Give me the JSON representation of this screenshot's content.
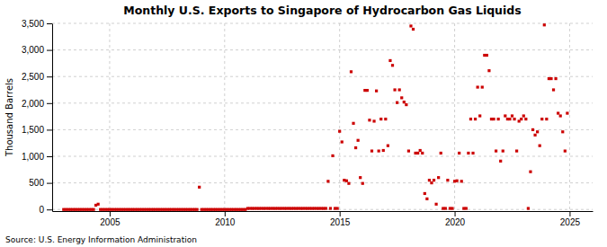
{
  "chart_data": {
    "type": "scatter",
    "title": "Monthly U.S. Exports to Singapore of Hydrocarbon Gas Liquids",
    "ylabel": "Thousand Barrels",
    "source": "Source: U.S. Energy Information Administration",
    "color": "#CC0000",
    "marker": "square",
    "grid": true,
    "xlim": [
      2002.5,
      2026
    ],
    "ylim": [
      -30,
      3500
    ],
    "xticks": [
      2005,
      2010,
      2015,
      2020,
      2025
    ],
    "yticks": [
      0,
      500,
      {
        "value": 1000,
        "label": "1,000"
      },
      {
        "value": 1500,
        "label": "1,500"
      },
      {
        "value": 2000,
        "label": "2,000"
      },
      {
        "value": 2500,
        "label": "2,500"
      },
      {
        "value": 3000,
        "label": "3,000"
      },
      {
        "value": 3500,
        "label": "3,500"
      }
    ],
    "x": [
      2003.0,
      2003.1,
      2003.2,
      2003.3,
      2003.4,
      2003.5,
      2003.6,
      2003.7,
      2003.8,
      2003.9,
      2004.0,
      2004.1,
      2004.2,
      2004.3,
      2004.4,
      2004.5,
      2004.6,
      2004.7,
      2004.8,
      2004.9,
      2005.0,
      2005.1,
      2005.2,
      2005.3,
      2005.4,
      2005.5,
      2005.6,
      2005.7,
      2005.8,
      2005.9,
      2006.0,
      2006.1,
      2006.2,
      2006.3,
      2006.4,
      2006.5,
      2006.6,
      2006.7,
      2006.8,
      2006.9,
      2007.0,
      2007.1,
      2007.2,
      2007.3,
      2007.4,
      2007.5,
      2007.6,
      2007.7,
      2007.8,
      2007.9,
      2008.0,
      2008.1,
      2008.2,
      2008.3,
      2008.4,
      2008.5,
      2008.6,
      2008.7,
      2008.8,
      2008.9,
      2009.0,
      2009.1,
      2009.2,
      2009.3,
      2009.4,
      2009.5,
      2009.6,
      2009.7,
      2009.8,
      2009.9,
      2010.0,
      2010.1,
      2010.2,
      2010.3,
      2010.4,
      2010.5,
      2010.6,
      2010.7,
      2010.8,
      2010.9,
      2011.0,
      2011.1,
      2011.2,
      2011.3,
      2011.4,
      2011.5,
      2011.6,
      2011.7,
      2011.8,
      2011.9,
      2012.0,
      2012.1,
      2012.2,
      2012.3,
      2012.4,
      2012.5,
      2012.6,
      2012.7,
      2012.8,
      2012.9,
      2013.0,
      2013.1,
      2013.2,
      2013.3,
      2013.4,
      2013.5,
      2013.6,
      2013.7,
      2013.8,
      2013.9,
      2014.0,
      2014.1,
      2014.2,
      2014.3,
      2014.4,
      2014.5,
      2014.6,
      2014.7,
      2014.8,
      2014.9,
      2015.0,
      2015.1,
      2015.2,
      2015.3,
      2015.4,
      2015.5,
      2015.6,
      2015.7,
      2015.8,
      2015.9,
      2016.0,
      2016.1,
      2016.2,
      2016.3,
      2016.4,
      2016.5,
      2016.6,
      2016.7,
      2016.8,
      2016.9,
      2017.0,
      2017.1,
      2017.2,
      2017.3,
      2017.4,
      2017.5,
      2017.6,
      2017.7,
      2017.8,
      2017.9,
      2018.0,
      2018.1,
      2018.2,
      2018.3,
      2018.4,
      2018.5,
      2018.6,
      2018.7,
      2018.8,
      2018.9,
      2019.0,
      2019.1,
      2019.2,
      2019.3,
      2019.4,
      2019.5,
      2019.6,
      2019.7,
      2019.8,
      2019.9,
      2020.0,
      2020.1,
      2020.2,
      2020.3,
      2020.4,
      2020.5,
      2020.6,
      2020.7,
      2020.8,
      2020.9,
      2021.0,
      2021.1,
      2021.2,
      2021.3,
      2021.4,
      2021.5,
      2021.6,
      2021.7,
      2021.8,
      2021.9,
      2022.0,
      2022.1,
      2022.2,
      2022.3,
      2022.4,
      2022.5,
      2022.6,
      2022.7,
      2022.8,
      2022.9,
      2023.0,
      2023.1,
      2023.2,
      2023.3,
      2023.4,
      2023.5,
      2023.6,
      2023.7,
      2023.8,
      2023.9,
      2024.0,
      2024.1,
      2024.2,
      2024.3,
      2024.4,
      2024.5,
      2024.6,
      2024.7,
      2024.8,
      2024.9
    ],
    "values": [
      0,
      0,
      0,
      0,
      0,
      0,
      0,
      0,
      0,
      0,
      0,
      0,
      0,
      0,
      80,
      100,
      0,
      0,
      0,
      0,
      0,
      0,
      0,
      0,
      0,
      0,
      0,
      0,
      0,
      0,
      0,
      0,
      0,
      0,
      0,
      0,
      0,
      0,
      0,
      0,
      0,
      0,
      0,
      0,
      0,
      0,
      0,
      0,
      0,
      0,
      0,
      0,
      0,
      0,
      0,
      0,
      0,
      0,
      0,
      420,
      0,
      0,
      0,
      0,
      0,
      0,
      0,
      0,
      0,
      0,
      0,
      0,
      0,
      0,
      0,
      0,
      0,
      0,
      0,
      0,
      20,
      20,
      20,
      20,
      20,
      20,
      20,
      20,
      20,
      20,
      20,
      20,
      20,
      20,
      20,
      20,
      20,
      20,
      20,
      20,
      20,
      20,
      20,
      20,
      20,
      20,
      20,
      20,
      20,
      20,
      20,
      20,
      20,
      20,
      20,
      530,
      20,
      1010,
      20,
      20,
      1470,
      1270,
      550,
      540,
      490,
      2590,
      1620,
      1160,
      1300,
      600,
      490,
      2240,
      2240,
      1680,
      1100,
      1660,
      2230,
      1100,
      1700,
      1110,
      1700,
      1200,
      2800,
      2710,
      2250,
      2010,
      2250,
      2100,
      2020,
      1970,
      1100,
      3450,
      3390,
      1060,
      1060,
      1110,
      1060,
      300,
      200,
      550,
      500,
      550,
      100,
      600,
      1060,
      20,
      20,
      550,
      20,
      20,
      530,
      540,
      1060,
      530,
      20,
      20,
      1060,
      1700,
      1060,
      1700,
      2300,
      1760,
      2300,
      2900,
      2900,
      2610,
      1700,
      1700,
      1100,
      1700,
      910,
      1100,
      1760,
      1700,
      1700,
      1760,
      1700,
      1100,
      1660,
      1700,
      1760,
      1700,
      20,
      710,
      1500,
      1400,
      1460,
      1200,
      1700,
      3470,
      1700,
      2460,
      2460,
      2250,
      2460,
      1810,
      1760,
      1460,
      1100,
      1810
    ]
  }
}
